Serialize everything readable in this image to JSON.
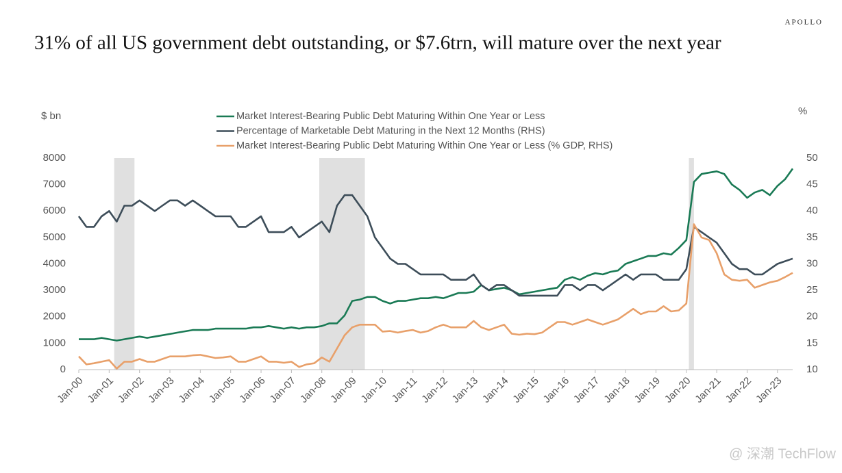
{
  "chart_data": {
    "type": "line",
    "brand": "APOLLO",
    "title": "31% of all US government debt outstanding, or $7.6trn, will mature over the next year",
    "y_label": "$ bn",
    "y2_label": "%",
    "watermark": "@ 深潮 TechFlow",
    "x": [
      "Jan-00",
      "Apr-00",
      "Jul-00",
      "Oct-00",
      "Jan-01",
      "Apr-01",
      "Jul-01",
      "Oct-01",
      "Jan-02",
      "Apr-02",
      "Jul-02",
      "Oct-02",
      "Jan-03",
      "Apr-03",
      "Jul-03",
      "Oct-03",
      "Jan-04",
      "Apr-04",
      "Jul-04",
      "Oct-04",
      "Jan-05",
      "Apr-05",
      "Jul-05",
      "Oct-05",
      "Jan-06",
      "Apr-06",
      "Jul-06",
      "Oct-06",
      "Jan-07",
      "Apr-07",
      "Jul-07",
      "Oct-07",
      "Jan-08",
      "Apr-08",
      "Jul-08",
      "Oct-08",
      "Jan-09",
      "Apr-09",
      "Jul-09",
      "Oct-09",
      "Jan-10",
      "Apr-10",
      "Jul-10",
      "Oct-10",
      "Jan-11",
      "Apr-11",
      "Jul-11",
      "Oct-11",
      "Jan-12",
      "Apr-12",
      "Jul-12",
      "Oct-12",
      "Jan-13",
      "Apr-13",
      "Jul-13",
      "Oct-13",
      "Jan-14",
      "Apr-14",
      "Jul-14",
      "Oct-14",
      "Jan-15",
      "Apr-15",
      "Jul-15",
      "Oct-15",
      "Jan-16",
      "Apr-16",
      "Jul-16",
      "Oct-16",
      "Jan-17",
      "Apr-17",
      "Jul-17",
      "Oct-17",
      "Jan-18",
      "Apr-18",
      "Jul-18",
      "Oct-18",
      "Jan-19",
      "Apr-19",
      "Jul-19",
      "Oct-19",
      "Jan-20",
      "Apr-20",
      "Jul-20",
      "Oct-20",
      "Jan-21",
      "Apr-21",
      "Jul-21",
      "Oct-21",
      "Jan-22",
      "Apr-22",
      "Jul-22",
      "Oct-22",
      "Jan-23",
      "Apr-23",
      "Jul-23"
    ],
    "xlim": [
      "Jan-00",
      "Jul-23"
    ],
    "xticks": [
      "Jan-00",
      "Jan-01",
      "Jan-02",
      "Jan-03",
      "Jan-04",
      "Jan-05",
      "Jan-06",
      "Jan-07",
      "Jan-08",
      "Jan-09",
      "Jan-10",
      "Jan-11",
      "Jan-12",
      "Jan-13",
      "Jan-14",
      "Jan-15",
      "Jan-16",
      "Jan-17",
      "Jan-18",
      "Jan-19",
      "Jan-20",
      "Jan-21",
      "Jan-22",
      "Jan-23"
    ],
    "shaded_regions": [
      [
        "Mar-01",
        "Nov-01"
      ],
      [
        "Dec-07",
        "Jun-09"
      ],
      [
        "Feb-20",
        "Apr-20"
      ]
    ],
    "shade_color": "#e0e0e0",
    "ylim": [
      0,
      8000
    ],
    "yticks": [
      0,
      1000,
      2000,
      3000,
      4000,
      5000,
      6000,
      7000,
      8000
    ],
    "y2lim": [
      10,
      50
    ],
    "y2ticks": [
      10,
      15,
      20,
      25,
      30,
      35,
      40,
      45,
      50
    ],
    "series": [
      {
        "name": "Market Interest-Bearing Public Debt Maturing Within One Year or Less",
        "color": "#1a7a55",
        "values": [
          1150,
          1150,
          1150,
          1200,
          1150,
          1100,
          1150,
          1200,
          1250,
          1200,
          1250,
          1300,
          1350,
          1400,
          1450,
          1500,
          1500,
          1500,
          1550,
          1550,
          1550,
          1550,
          1550,
          1600,
          1600,
          1650,
          1600,
          1550,
          1600,
          1550,
          1600,
          1600,
          1650,
          1750,
          1750,
          2050,
          2600,
          2650,
          2750,
          2750,
          2600,
          2500,
          2600,
          2600,
          2650,
          2700,
          2700,
          2750,
          2700,
          2800,
          2900,
          2900,
          2950,
          3200,
          3000,
          3050,
          3100,
          3000,
          2850,
          2900,
          2950,
          3000,
          3050,
          3100,
          3400,
          3500,
          3400,
          3550,
          3650,
          3600,
          3700,
          3750,
          4000,
          4100,
          4200,
          4300,
          4300,
          4400,
          4350,
          4600,
          4900,
          7100,
          7400,
          7450,
          7500,
          7400,
          7000,
          6800,
          6500,
          6700,
          6800,
          6600,
          6950,
          7200,
          7600
        ]
      },
      {
        "name": "Percentage of Marketable Debt Maturing in the Next 12 Months (RHS)",
        "color": "#3d4d59",
        "axis": "y2",
        "values": [
          39,
          37,
          37,
          39,
          40,
          38,
          41,
          41,
          42,
          41,
          40,
          41,
          42,
          42,
          41,
          42,
          41,
          40,
          39,
          39,
          39,
          37,
          37,
          38,
          39,
          36,
          36,
          36,
          37,
          35,
          36,
          37,
          38,
          36,
          41,
          43,
          43,
          41,
          39,
          35,
          33,
          31,
          30,
          30,
          29,
          28,
          28,
          28,
          28,
          27,
          27,
          27,
          28,
          26,
          25,
          26,
          26,
          25,
          24,
          24,
          24,
          24,
          24,
          24,
          26,
          26,
          25,
          26,
          26,
          25,
          26,
          27,
          28,
          27,
          28,
          28,
          28,
          27,
          27,
          27,
          29,
          37,
          36,
          35,
          34,
          32,
          30,
          29,
          29,
          28,
          28,
          29,
          30,
          30.5,
          31
        ]
      },
      {
        "name": "Market Interest-Bearing Public Debt Maturing Within One Year or Less (% GDP, RHS)",
        "color": "#e8a06a",
        "axis": "y2",
        "values": [
          12.5,
          11,
          11.2,
          11.5,
          11.8,
          10.2,
          11.5,
          11.5,
          12,
          11.5,
          11.5,
          12,
          12.5,
          12.5,
          12.5,
          12.7,
          12.8,
          12.5,
          12.2,
          12.3,
          12.5,
          11.5,
          11.5,
          12,
          12.5,
          11.5,
          11.5,
          11.3,
          11.5,
          10.5,
          11,
          11.2,
          12.3,
          11.5,
          14,
          16.5,
          18,
          18.5,
          18.5,
          18.5,
          17.2,
          17.3,
          17,
          17.3,
          17.5,
          17,
          17.3,
          18,
          18.5,
          18,
          18,
          18,
          19.2,
          18,
          17.5,
          18,
          18.5,
          16.8,
          16.6,
          16.8,
          16.7,
          17,
          18,
          19,
          19,
          18.5,
          19,
          19.5,
          19,
          18.5,
          19,
          19.5,
          20.5,
          21.5,
          20.5,
          21,
          21,
          22,
          21,
          21.2,
          22.5,
          37.5,
          35,
          34.5,
          32,
          28,
          27,
          26.8,
          27,
          25.5,
          26,
          26.5,
          26.8,
          27.5,
          28.3
        ]
      }
    ]
  }
}
